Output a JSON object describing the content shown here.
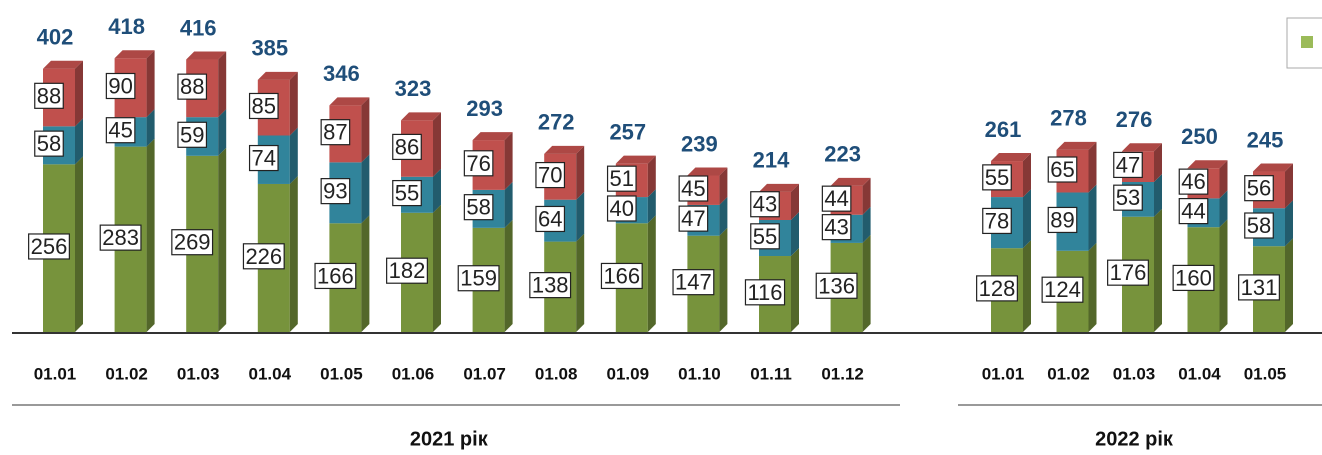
{
  "chart_data": {
    "type": "stacked_bar",
    "groups": [
      {
        "label": "2021 рік",
        "categories": [
          "01.01",
          "01.02",
          "01.03",
          "01.04",
          "01.05",
          "01.06",
          "01.07",
          "01.08",
          "01.09",
          "01.10",
          "01.11",
          "01.12"
        ]
      },
      {
        "label": "2022 рік",
        "categories": [
          "01.01",
          "01.02",
          "01.03",
          "01.04",
          "01.05"
        ]
      }
    ],
    "series": [
      {
        "color": "#77933c",
        "values": [
          256,
          283,
          269,
          226,
          166,
          182,
          159,
          138,
          166,
          147,
          116,
          136,
          128,
          124,
          176,
          160,
          131
        ]
      },
      {
        "color": "#31849b",
        "values": [
          58,
          45,
          59,
          74,
          93,
          55,
          58,
          64,
          40,
          47,
          55,
          43,
          78,
          89,
          53,
          44,
          58
        ]
      },
      {
        "color": "#c0504d",
        "values": [
          88,
          90,
          88,
          85,
          87,
          86,
          76,
          70,
          51,
          45,
          43,
          44,
          55,
          65,
          47,
          46,
          56
        ]
      }
    ],
    "totals": [
      402,
      418,
      416,
      385,
      346,
      323,
      293,
      272,
      257,
      239,
      214,
      223,
      261,
      278,
      276,
      250,
      245
    ]
  }
}
